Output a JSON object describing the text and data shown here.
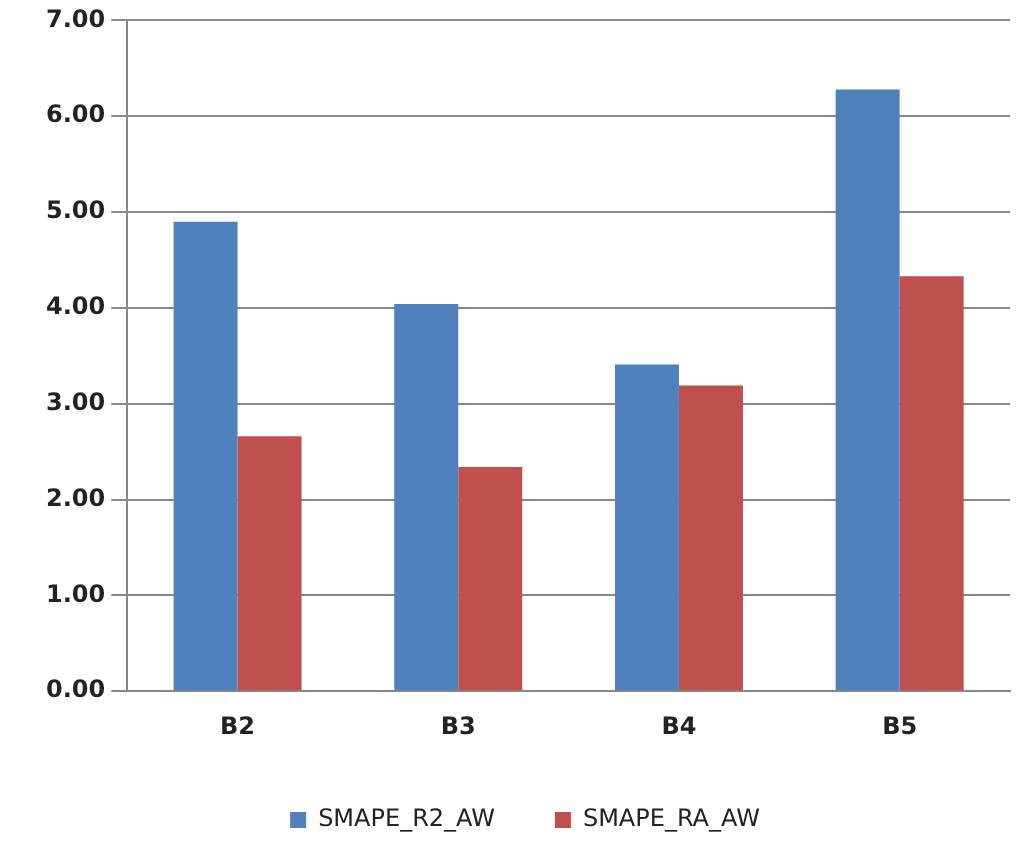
{
  "chart_data": {
    "type": "bar",
    "categories": [
      "B2",
      "B3",
      "B4",
      "B5"
    ],
    "series": [
      {
        "name": "SMAPE_R2_AW",
        "color": "#4f81bd",
        "values": [
          4.9,
          4.04,
          3.41,
          6.28
        ]
      },
      {
        "name": "SMAPE_RA_AW",
        "color": "#c0504d",
        "values": [
          2.66,
          2.34,
          3.19,
          4.33
        ]
      }
    ],
    "ylim": [
      0,
      7
    ],
    "yticks": [
      {
        "value": 0,
        "label": "0.00"
      },
      {
        "value": 1,
        "label": "1.00"
      },
      {
        "value": 2,
        "label": "2.00"
      },
      {
        "value": 3,
        "label": "3.00"
      },
      {
        "value": 4,
        "label": "4.00"
      },
      {
        "value": 5,
        "label": "5.00"
      },
      {
        "value": 6,
        "label": "6.00"
      },
      {
        "value": 7,
        "label": "7.00"
      }
    ],
    "grid": "y",
    "legend": "bottom"
  }
}
